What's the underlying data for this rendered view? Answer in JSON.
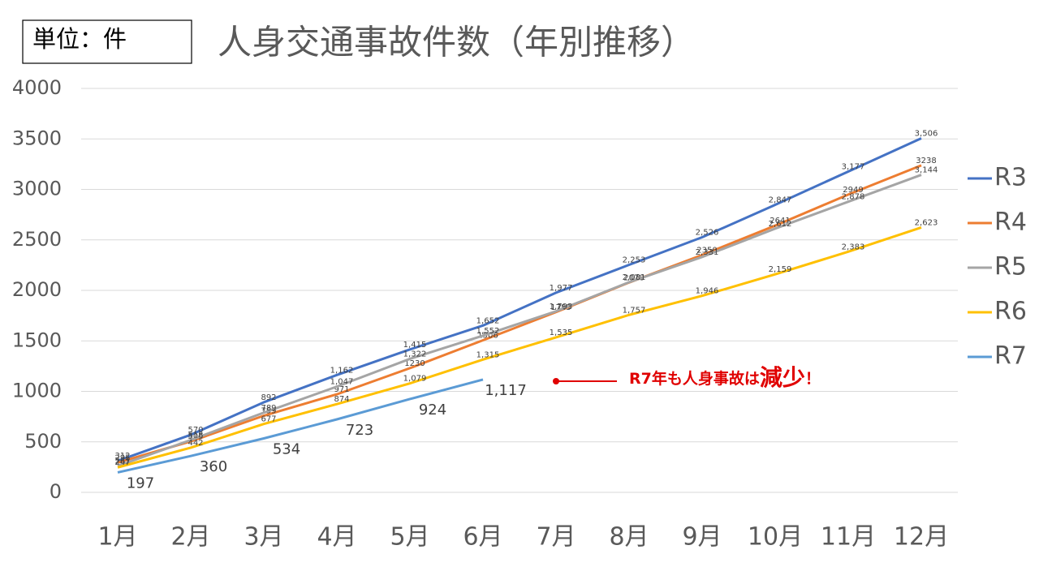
{
  "chart_data": {
    "type": "line",
    "unit_label": "単位：件",
    "title": "人身交通事故件数（年別推移）",
    "categories": [
      "1月",
      "2月",
      "3月",
      "4月",
      "5月",
      "6月",
      "7月",
      "8月",
      "9月",
      "10月",
      "11月",
      "12月"
    ],
    "series": [
      {
        "name": "R3",
        "color": "#4472c4",
        "values": [
          312,
          570,
          892,
          1162,
          1415,
          1652,
          1977,
          2253,
          2526,
          2847,
          3177,
          3506
        ],
        "value_labels": [
          "312",
          "570",
          "892",
          "1,162",
          "1,415",
          "1,652",
          "1,977",
          "2,253",
          "2,526",
          "2,847",
          "3,177",
          "3,506"
        ]
      },
      {
        "name": "R4",
        "color": "#ed7d31",
        "values": [
          295,
          505,
          759,
          971,
          1230,
          1506,
          1785,
          2078,
          2350,
          2641,
          2949,
          3238
        ],
        "value_labels": [
          "295",
          "505",
          "759",
          "971",
          "1230",
          "1506",
          "1785",
          "2078",
          "2350",
          "2641",
          "2949",
          "3238"
        ]
      },
      {
        "name": "R5",
        "color": "#a5a5a5",
        "values": [
          261,
          518,
          789,
          1047,
          1322,
          1552,
          1793,
          2081,
          2331,
          2612,
          2878,
          3144
        ],
        "value_labels": [
          "261",
          "518",
          "789",
          "1,047",
          "1,322",
          "1,552",
          "1,793",
          "2,081",
          "2,331",
          "2,612",
          "2,878",
          "3,144"
        ]
      },
      {
        "name": "R6",
        "color": "#ffc000",
        "values": [
          247,
          442,
          677,
          874,
          1079,
          1315,
          1535,
          1757,
          1946,
          2159,
          2383,
          2623
        ],
        "value_labels": [
          "247",
          "442",
          "677",
          "874",
          "1,079",
          "1,315",
          "1,535",
          "1,757",
          "1,946",
          "2,159",
          "2,383",
          "2,623"
        ]
      },
      {
        "name": "R7",
        "color": "#5b9bd5",
        "values": [
          197,
          360,
          534,
          723,
          924,
          1117,
          null,
          null,
          null,
          null,
          null,
          null
        ],
        "value_labels": [
          "197",
          "360",
          "534",
          "723",
          "924",
          "1,117",
          null,
          null,
          null,
          null,
          null,
          null
        ]
      }
    ],
    "ylim": [
      0,
      4000
    ],
    "yticks": [
      0,
      500,
      1000,
      1500,
      2000,
      2500,
      3000,
      3500,
      4000
    ],
    "grid": true,
    "legend": "right",
    "annotation": {
      "text": "R7年も人身事故は",
      "emphasis": "減少",
      "suffix": "！",
      "color": "#e00000"
    }
  }
}
